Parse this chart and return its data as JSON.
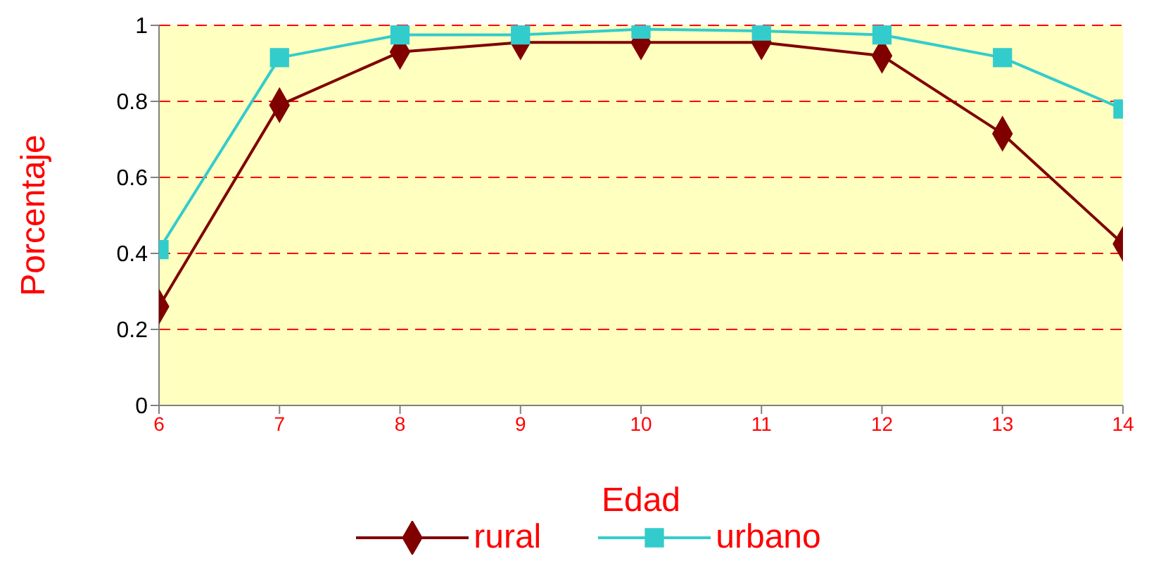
{
  "chart_data": {
    "type": "line",
    "xlabel": "Edad",
    "ylabel": "Porcentaje",
    "x": [
      6,
      7,
      8,
      9,
      10,
      11,
      12,
      13,
      14
    ],
    "series": [
      {
        "name": "rural",
        "color": "#800000",
        "marker": "diamond",
        "values": [
          0.26,
          0.79,
          0.93,
          0.955,
          0.955,
          0.955,
          0.92,
          0.715,
          0.425
        ]
      },
      {
        "name": "urbano",
        "color": "#33cccc",
        "marker": "square",
        "values": [
          0.41,
          0.915,
          0.975,
          0.975,
          0.99,
          0.985,
          0.975,
          0.915,
          0.78
        ]
      }
    ],
    "xlim": [
      6,
      14
    ],
    "xticks": [
      6,
      7,
      8,
      9,
      10,
      11,
      12,
      13,
      14
    ],
    "ylim": [
      0,
      1
    ],
    "yticks": [
      0,
      0.2,
      0.4,
      0.6,
      0.8,
      1
    ],
    "grid": "y",
    "legend": "bottom",
    "line_style": "solid"
  }
}
